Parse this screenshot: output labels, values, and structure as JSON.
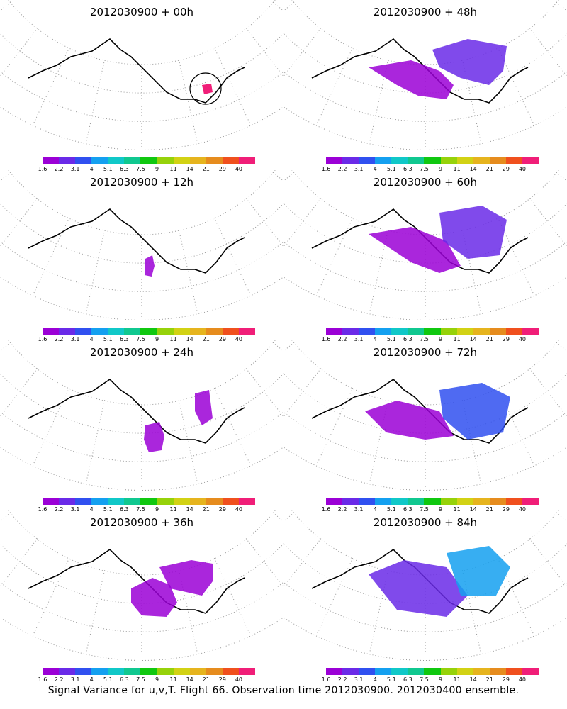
{
  "panels": [
    {
      "title": "2012030900  + 00h",
      "blobs": [],
      "circle": true
    },
    {
      "title": "2012030900  + 48h",
      "blobs": [
        "p48"
      ]
    },
    {
      "title": "2012030900  + 12h",
      "blobs": [
        "p12"
      ]
    },
    {
      "title": "2012030900  + 60h",
      "blobs": [
        "p60"
      ]
    },
    {
      "title": "2012030900  + 24h",
      "blobs": [
        "p24"
      ]
    },
    {
      "title": "2012030900  + 72h",
      "blobs": [
        "p72"
      ]
    },
    {
      "title": "2012030900  + 36h",
      "blobs": [
        "p36"
      ]
    },
    {
      "title": "2012030900  + 84h",
      "blobs": [
        "p84"
      ]
    }
  ],
  "colorbar": {
    "labels": [
      "1.6",
      "2.2",
      "3.1",
      "4",
      "5.1",
      "6.3",
      "7.5",
      "9",
      "11",
      "14",
      "21",
      "29",
      "40"
    ],
    "colors": [
      "#9b00d6",
      "#6a2ae8",
      "#3050f0",
      "#14a0f0",
      "#10c8c8",
      "#10c890",
      "#10c810",
      "#96d20a",
      "#d2d214",
      "#e6b41e",
      "#e68c1e",
      "#f0501e",
      "#f01e78"
    ]
  },
  "footer": "Signal Variance for u,v,T. Flight 66. Observation time 2012030900. 2012030400 ensemble."
}
